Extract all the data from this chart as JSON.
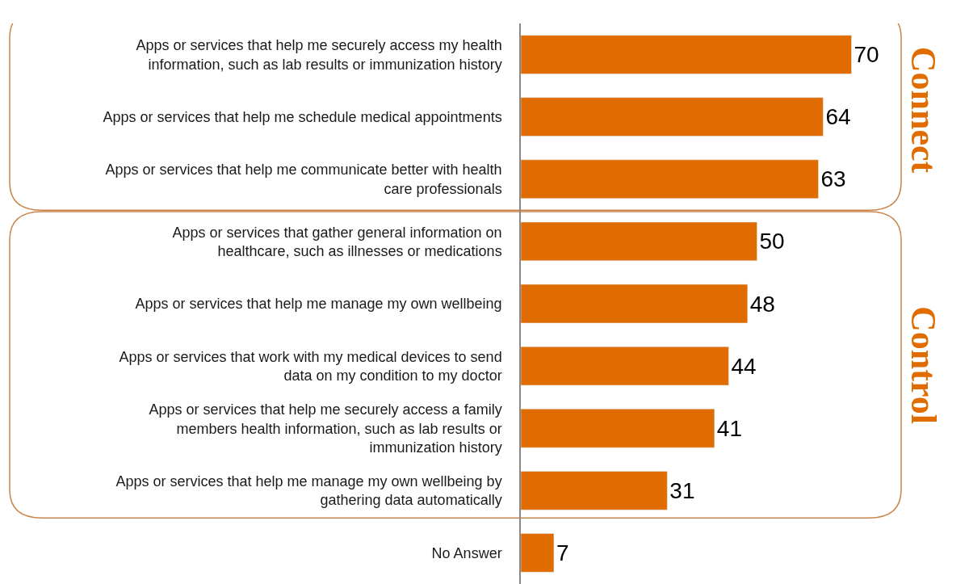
{
  "chart_data": {
    "type": "bar",
    "orientation": "horizontal",
    "categories": [
      "Apps or services that help me securely access my health information, such as lab results or immunization history",
      "Apps or services that help me schedule medical appointments",
      "Apps or services that help me communicate better with health care professionals",
      "Apps or services that gather general information on healthcare, such as illnesses or medications",
      "Apps or services that help me manage my own wellbeing",
      "Apps or services that work with my medical devices to send data on my condition to my doctor",
      "Apps or services that help me securely access a family members health information, such as lab results or immunization history",
      "Apps or services that help me manage my own wellbeing by gathering data automatically",
      "No Answer"
    ],
    "values": [
      70,
      64,
      63,
      50,
      48,
      44,
      41,
      31,
      7
    ],
    "color": "#e06c00",
    "data_labels": true,
    "legend": false,
    "annotations": [
      "Connect",
      "Control"
    ]
  }
}
